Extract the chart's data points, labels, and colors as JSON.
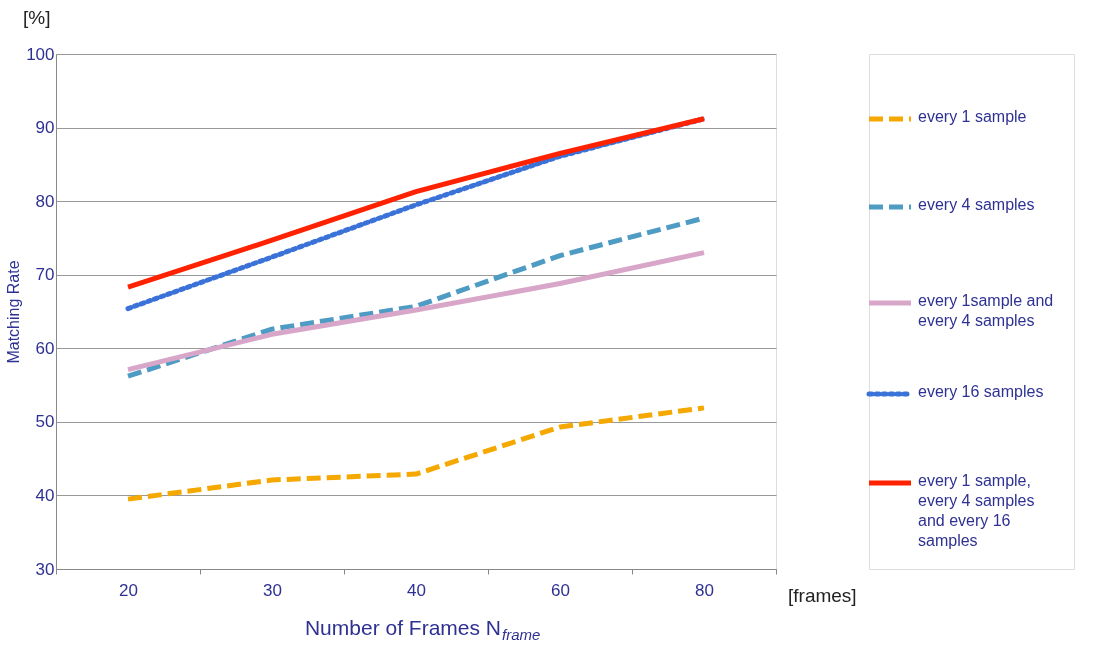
{
  "chart_data": {
    "type": "line",
    "xlabel": "Number of Frames N$_{frame}$",
    "ylabel": "Matching Rate",
    "annotations": [
      "[%]",
      "[frames]"
    ],
    "categories": [
      "20",
      "30",
      "40",
      "60",
      "80"
    ],
    "series": [
      {
        "name": "every 1 sample",
        "color": "#f5a800",
        "line_style": "dashed",
        "values": [
          39.5,
          42.1,
          42.9,
          49.3,
          51.9
        ]
      },
      {
        "name": "every 4 samples",
        "color": "#4e9bc4",
        "line_style": "dashed",
        "values": [
          56.2,
          62.6,
          65.7,
          72.6,
          77.7
        ]
      },
      {
        "name": "every 1sample and every 4 samples",
        "color": "#d8a6c9",
        "line_style": "solid",
        "values": [
          57.1,
          61.9,
          65.2,
          68.8,
          73.0
        ]
      },
      {
        "name": "every 16 samples",
        "color": "#3a72d8",
        "line_style": "dotted",
        "values": [
          65.4,
          72.4,
          79.5,
          86.1,
          91.2
        ]
      },
      {
        "name": "every 1 sample, every 4 samples and every 16 samples",
        "color": "#ff2200",
        "line_style": "solid",
        "values": [
          68.3,
          74.7,
          81.3,
          86.5,
          91.2
        ]
      }
    ],
    "ylim": [
      30,
      100
    ],
    "yticks": [
      30,
      40,
      50,
      60,
      70,
      80,
      90,
      100
    ],
    "grid": "y",
    "legend": "right"
  }
}
